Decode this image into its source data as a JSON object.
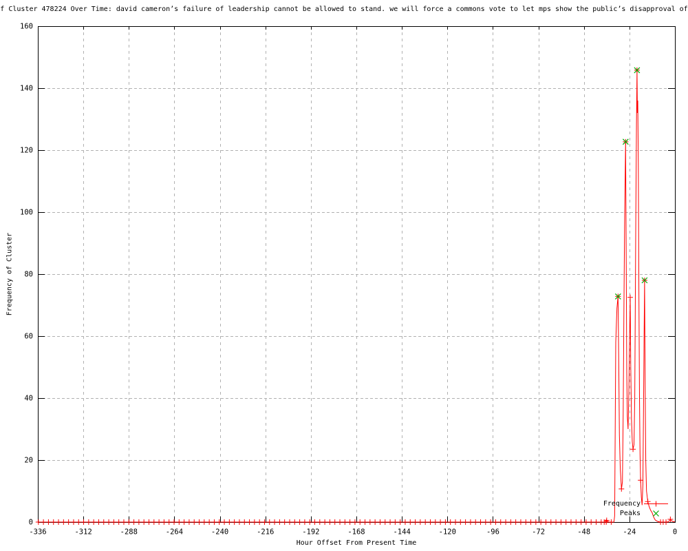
{
  "window": {
    "background": "#ffffff"
  },
  "chart_data": {
    "type": "line",
    "title": "f Cluster 478224 Over Time: david cameron’s failure of leadership cannot be allowed to stand. we will force a commons vote to let mps show the public’s disapproval of",
    "xlabel": "Hour Offset From Present Time",
    "ylabel": "Frequency of Cluster",
    "xlim": [
      -336,
      0
    ],
    "ylim": [
      0,
      160
    ],
    "grid": true,
    "grid_color": "#b0b0b0",
    "border_color": "#000000",
    "x_ticks": [
      {
        "v": -336,
        "label": "-336"
      },
      {
        "v": -312,
        "label": "-312"
      },
      {
        "v": -288,
        "label": "-288"
      },
      {
        "v": -264,
        "label": "-264"
      },
      {
        "v": -240,
        "label": "-240"
      },
      {
        "v": -216,
        "label": "-216"
      },
      {
        "v": -192,
        "label": "-192"
      },
      {
        "v": -168,
        "label": "-168"
      },
      {
        "v": -144,
        "label": "-144"
      },
      {
        "v": -120,
        "label": "-120"
      },
      {
        "v": -96,
        "label": "-96"
      },
      {
        "v": -72,
        "label": "-72"
      },
      {
        "v": -48,
        "label": "-48"
      },
      {
        "v": -24,
        "label": "-24"
      },
      {
        "v": 0,
        "label": "0"
      }
    ],
    "y_ticks": [
      {
        "v": 0,
        "label": "0"
      },
      {
        "v": 20,
        "label": "20"
      },
      {
        "v": 40,
        "label": "40"
      },
      {
        "v": 60,
        "label": "60"
      },
      {
        "v": 80,
        "label": "80"
      },
      {
        "v": 100,
        "label": "100"
      },
      {
        "v": 120,
        "label": "120"
      },
      {
        "v": 140,
        "label": "140"
      },
      {
        "v": 160,
        "label": "160"
      }
    ],
    "legend": {
      "position": "bottom-right",
      "entries": [
        {
          "label": "Frequency",
          "style": "line-with-plus",
          "color": "#ff0000"
        },
        {
          "label": "Peaks",
          "style": "x-point",
          "color": "#00aa00"
        }
      ]
    },
    "series": [
      {
        "name": "Frequency",
        "type": "linespoints",
        "color": "#ff0000",
        "marker": "plus",
        "points": [
          [
            -336,
            0
          ],
          [
            -40,
            0
          ],
          [
            -38,
            0
          ],
          [
            -37.3,
            0
          ],
          [
            -36.7,
            0.25
          ],
          [
            -36,
            0.55
          ],
          [
            -35.4,
            0.2
          ],
          [
            -34.8,
            0
          ],
          [
            -32.2,
            0
          ],
          [
            -31.8,
            2
          ],
          [
            -31.5,
            30
          ],
          [
            -31.2,
            58
          ],
          [
            -30.6,
            69
          ],
          [
            -30,
            72.8
          ],
          [
            -29.6,
            50
          ],
          [
            -29.3,
            28
          ],
          [
            -28.8,
            17
          ],
          [
            -28.2,
            10.7
          ],
          [
            -27.7,
            13
          ],
          [
            -27.3,
            35
          ],
          [
            -26.9,
            70
          ],
          [
            -26.5,
            100
          ],
          [
            -26,
            122.7
          ],
          [
            -25.7,
            85
          ],
          [
            -25.4,
            48
          ],
          [
            -25.1,
            34
          ],
          [
            -24.7,
            30
          ],
          [
            -24.3,
            42
          ],
          [
            -23.9,
            60
          ],
          [
            -23.6,
            72.5
          ],
          [
            -23.3,
            50
          ],
          [
            -22.9,
            33
          ],
          [
            -22.5,
            26
          ],
          [
            -22.1,
            23.5
          ],
          [
            -21.6,
            25
          ],
          [
            -21.2,
            40
          ],
          [
            -20.9,
            70
          ],
          [
            -20.6,
            100
          ],
          [
            -20.3,
            128
          ],
          [
            -20,
            145.8
          ],
          [
            -19.8,
            132
          ],
          [
            -19.6,
            136
          ],
          [
            -19.3,
            115
          ],
          [
            -19,
            75
          ],
          [
            -18.7,
            40
          ],
          [
            -18.4,
            22
          ],
          [
            -18.1,
            13.5
          ],
          [
            -17.7,
            8
          ],
          [
            -17.3,
            5.5
          ],
          [
            -16.9,
            12
          ],
          [
            -16.6,
            35
          ],
          [
            -16.3,
            58
          ],
          [
            -16,
            78
          ],
          [
            -15.7,
            45
          ],
          [
            -15.4,
            20
          ],
          [
            -15,
            10
          ],
          [
            -14.6,
            8
          ],
          [
            -14.3,
            6.6
          ],
          [
            -13.6,
            5
          ],
          [
            -12.8,
            3.8
          ],
          [
            -12,
            3
          ],
          [
            -11.2,
            1.6
          ],
          [
            -10.4,
            0.7
          ],
          [
            -9.5,
            0.3
          ],
          [
            -8.5,
            0.1
          ],
          [
            -7.6,
            0
          ],
          [
            -6.2,
            0
          ],
          [
            -4.7,
            0
          ],
          [
            -3.4,
            0.1
          ],
          [
            -2.4,
            0.9
          ],
          [
            -1.6,
            0.3
          ],
          [
            -0.8,
            0.1
          ],
          [
            0,
            0.2
          ]
        ],
        "point_markers": [
          [
            -37.3,
            0
          ],
          [
            -36,
            0.55
          ],
          [
            -30,
            72.8
          ],
          [
            -28.2,
            10.7
          ],
          [
            -26,
            122.7
          ],
          [
            -23.6,
            72.5
          ],
          [
            -22.1,
            23.5
          ],
          [
            -20,
            145.8
          ],
          [
            -18.1,
            13.5
          ],
          [
            -16,
            78
          ],
          [
            -14.3,
            6.6
          ],
          [
            -7.6,
            0
          ],
          [
            -6.2,
            0
          ],
          [
            -4.7,
            0
          ],
          [
            -2.4,
            0.9
          ]
        ],
        "baseline_marker_rule": {
          "start": -335.7,
          "end": -33.5,
          "step": 2.65,
          "value": 0
        }
      },
      {
        "name": "Peaks",
        "type": "points",
        "color": "#00aa00",
        "marker": "x",
        "points": [
          [
            -30,
            72.8
          ],
          [
            -26,
            122.7
          ],
          [
            -20,
            145.8
          ],
          [
            -16,
            78
          ]
        ]
      }
    ]
  }
}
